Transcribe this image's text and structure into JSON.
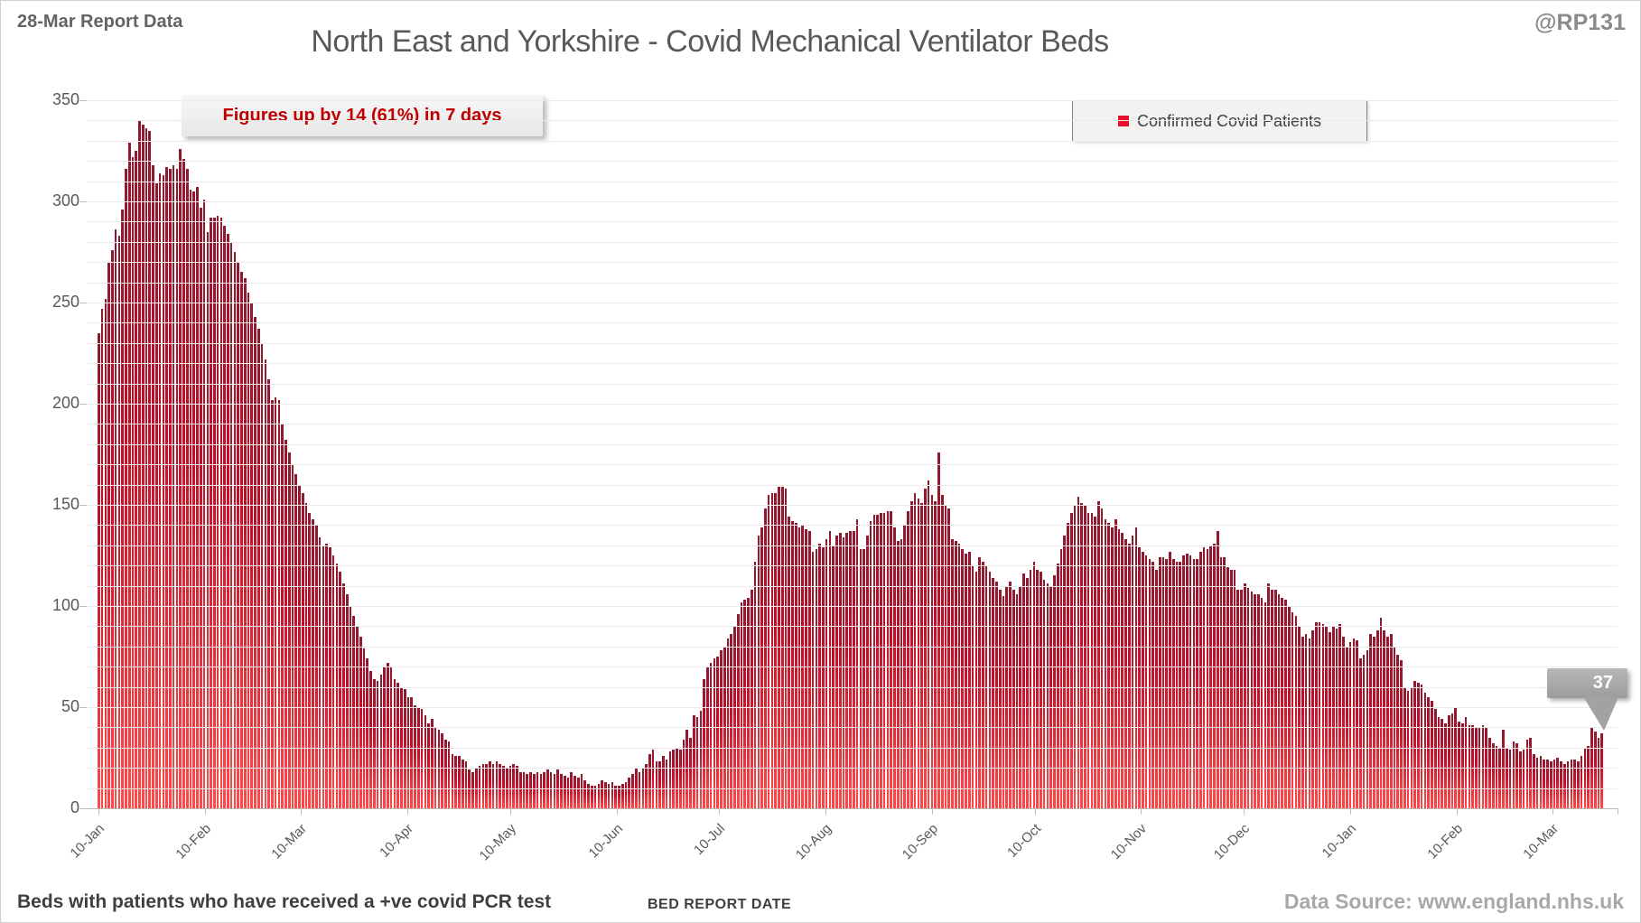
{
  "header": {
    "report_label": "28-Mar Report Data",
    "title": "North East and Yorkshire - Covid Mechanical Ventilator Beds",
    "handle": "@RP131"
  },
  "annotation": {
    "text": "Figures up by 14 (61%) in 7 days",
    "text_color": "#c00000"
  },
  "legend": {
    "label": "Confirmed Covid Patients",
    "marker_color": "#e8112d"
  },
  "callout": {
    "value": "37"
  },
  "footer": {
    "note": "Beds with patients who have received a +ve covid PCR test",
    "xlabel": "BED REPORT DATE",
    "source": "Data Source: www.england.nhs.uk"
  },
  "chart_data": {
    "type": "bar",
    "title": "North East and Yorkshire - Covid Mechanical Ventilator Beds",
    "xlabel": "BED REPORT DATE",
    "ylabel": "",
    "ylim": [
      0,
      350
    ],
    "y_ticks": [
      0,
      50,
      100,
      150,
      200,
      250,
      300,
      350
    ],
    "grid": "minor horizontal every 10, light gray",
    "legend_position": "top-right inside",
    "series_name": "Confirmed Covid Patients",
    "x_unit": "daily bed report date, 10-Jan to 28-Mar (following year)",
    "x_tick_labels": [
      "10-Jan",
      "10-Feb",
      "10-Mar",
      "10-Apr",
      "10-May",
      "10-Jun",
      "10-Jul",
      "10-Aug",
      "10-Sep",
      "10-Oct",
      "10-Nov",
      "10-Dec",
      "10-Jan",
      "10-Feb",
      "10-Mar"
    ],
    "x_tick_day_offsets": [
      0,
      31,
      59,
      90,
      120,
      151,
      181,
      212,
      243,
      273,
      304,
      334,
      365,
      396,
      424
    ],
    "bar_color_top": "#8e1a30",
    "bar_color_mid": "#c10e28",
    "bar_color_bottom": "#ff4a4a",
    "last_value_callout": 37,
    "values": [
      235,
      247,
      252,
      270,
      276,
      286,
      283,
      296,
      316,
      329,
      322,
      325,
      340,
      338,
      336,
      335,
      318,
      309,
      314,
      313,
      317,
      316,
      318,
      316,
      326,
      321,
      316,
      306,
      305,
      307,
      297,
      301,
      285,
      292,
      292,
      293,
      292,
      288,
      284,
      280,
      275,
      270,
      265,
      262,
      255,
      250,
      243,
      237,
      230,
      222,
      212,
      202,
      203,
      202,
      190,
      182,
      176,
      170,
      165,
      160,
      156,
      151,
      146,
      143,
      140,
      134,
      130,
      131,
      129,
      125,
      121,
      117,
      111,
      106,
      100,
      95,
      90,
      85,
      79,
      74,
      68,
      64,
      63,
      66,
      70,
      72,
      70,
      64,
      62,
      60,
      59,
      55,
      55,
      51,
      50,
      49,
      46,
      42,
      44,
      40,
      39,
      37,
      34,
      33,
      27,
      26,
      26,
      24,
      23,
      19,
      18,
      20,
      21,
      22,
      22,
      23,
      22,
      23,
      22,
      21,
      20,
      21,
      22,
      21,
      18,
      18,
      17,
      18,
      17,
      18,
      17,
      18,
      19,
      18,
      17,
      19,
      17,
      16,
      15,
      18,
      16,
      15,
      17,
      14,
      12,
      11,
      11,
      12,
      14,
      13,
      12,
      13,
      11,
      11,
      12,
      13,
      15,
      17,
      20,
      18,
      20,
      22,
      27,
      29,
      23,
      23,
      26,
      24,
      28,
      29,
      30,
      29,
      34,
      39,
      35,
      46,
      45,
      48,
      64,
      70,
      72,
      74,
      75,
      78,
      80,
      84,
      86,
      90,
      96,
      102,
      103,
      104,
      108,
      122,
      135,
      139,
      148,
      155,
      156,
      156,
      159,
      159,
      158,
      144,
      142,
      141,
      139,
      140,
      138,
      137,
      127,
      128,
      131,
      129,
      133,
      137,
      130,
      135,
      136,
      134,
      136,
      137,
      137,
      143,
      128,
      128,
      135,
      142,
      145,
      145,
      146,
      146,
      147,
      147,
      139,
      132,
      133,
      140,
      147,
      152,
      156,
      153,
      151,
      158,
      162,
      155,
      152,
      176,
      155,
      150,
      148,
      133,
      132,
      131,
      128,
      126,
      127,
      120,
      117,
      124,
      122,
      120,
      117,
      114,
      112,
      108,
      105,
      110,
      112,
      108,
      106,
      110,
      116,
      114,
      118,
      122,
      118,
      117,
      113,
      111,
      110,
      115,
      121,
      128,
      135,
      141,
      146,
      150,
      154,
      151,
      150,
      146,
      146,
      144,
      152,
      148,
      143,
      141,
      139,
      143,
      138,
      136,
      133,
      131,
      135,
      139,
      129,
      127,
      125,
      123,
      122,
      118,
      124,
      124,
      123,
      127,
      123,
      122,
      122,
      125,
      126,
      125,
      123,
      123,
      127,
      129,
      128,
      130,
      131,
      137,
      124,
      124,
      119,
      118,
      118,
      108,
      108,
      111,
      109,
      107,
      106,
      106,
      104,
      102,
      111,
      108,
      108,
      106,
      104,
      103,
      100,
      97,
      95,
      90,
      85,
      86,
      84,
      88,
      92,
      92,
      91,
      90,
      87,
      90,
      89,
      91,
      85,
      80,
      82,
      84,
      83,
      74,
      76,
      78,
      86,
      85,
      88,
      94,
      88,
      85,
      86,
      80,
      76,
      73,
      60,
      58,
      60,
      63,
      62,
      61,
      57,
      55,
      53,
      49,
      45,
      44,
      42,
      46,
      47,
      50,
      43,
      42,
      45,
      41,
      41,
      40,
      40,
      41,
      40,
      35,
      32,
      31,
      30,
      39,
      30,
      29,
      33,
      32,
      28,
      29,
      34,
      35,
      27,
      25,
      26,
      24,
      24,
      23,
      24,
      25,
      23,
      22,
      23,
      24,
      24,
      23,
      26,
      30,
      31,
      40,
      38,
      35,
      37
    ]
  }
}
